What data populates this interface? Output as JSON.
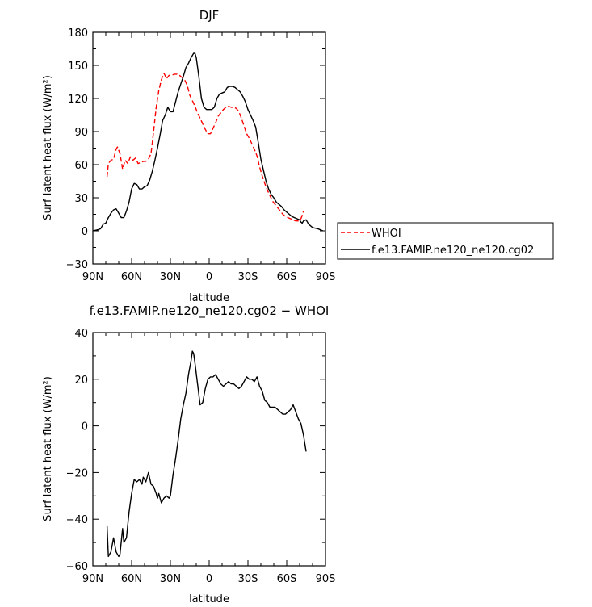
{
  "chart_data": [
    {
      "type": "line",
      "title": "DJF",
      "xlabel": "latitude",
      "ylabel": "Surf latent heat flux (W/m²)",
      "xlim": [
        90,
        -90
      ],
      "ylim": [
        -30,
        180
      ],
      "x_ticks": [
        90,
        60,
        30,
        0,
        -30,
        -60,
        -90
      ],
      "x_tick_labels": [
        "90N",
        "60N",
        "30N",
        "0",
        "30S",
        "60S",
        "90S"
      ],
      "y_ticks": [
        -30,
        0,
        30,
        60,
        90,
        120,
        150,
        180
      ],
      "y_tick_labels": [
        "−30",
        "0",
        "30",
        "60",
        "90",
        "120",
        "150",
        "180"
      ],
      "legend_position": "right, outside plot",
      "series": [
        {
          "name": "WHOI",
          "color": "#ff0000",
          "dash": true,
          "points": [
            [
              79,
              49
            ],
            [
              78,
              61
            ],
            [
              76,
              64
            ],
            [
              74,
              65
            ],
            [
              72,
              74
            ],
            [
              71,
              76
            ],
            [
              69,
              70
            ],
            [
              67,
              56
            ],
            [
              65,
              64
            ],
            [
              63,
              61
            ],
            [
              61,
              67
            ],
            [
              59,
              64
            ],
            [
              57,
              66
            ],
            [
              55,
              61
            ],
            [
              53,
              62
            ],
            [
              51,
              63
            ],
            [
              49,
              63
            ],
            [
              47,
              65
            ],
            [
              45,
              70
            ],
            [
              43,
              90
            ],
            [
              41,
              112
            ],
            [
              39,
              127
            ],
            [
              37,
              137
            ],
            [
              35,
              143
            ],
            [
              33,
              138
            ],
            [
              31,
              141
            ],
            [
              29,
              141
            ],
            [
              27,
              142
            ],
            [
              25,
              142
            ],
            [
              23,
              141
            ],
            [
              21,
              139
            ],
            [
              19,
              137
            ],
            [
              17,
              132
            ],
            [
              15,
              123
            ],
            [
              13,
              118
            ],
            [
              11,
              113
            ],
            [
              9,
              107
            ],
            [
              7,
              102
            ],
            [
              5,
              97
            ],
            [
              3,
              92
            ],
            [
              1,
              88
            ],
            [
              -1,
              88
            ],
            [
              -3,
              93
            ],
            [
              -5,
              98
            ],
            [
              -7,
              104
            ],
            [
              -9,
              107
            ],
            [
              -11,
              110
            ],
            [
              -13,
              112
            ],
            [
              -15,
              113
            ],
            [
              -17,
              112
            ],
            [
              -19,
              112
            ],
            [
              -21,
              111
            ],
            [
              -23,
              108
            ],
            [
              -25,
              102
            ],
            [
              -27,
              95
            ],
            [
              -29,
              88
            ],
            [
              -31,
              84
            ],
            [
              -33,
              79
            ],
            [
              -35,
              74
            ],
            [
              -37,
              68
            ],
            [
              -39,
              58
            ],
            [
              -41,
              50
            ],
            [
              -43,
              43
            ],
            [
              -45,
              37
            ],
            [
              -47,
              32
            ],
            [
              -49,
              27
            ],
            [
              -51,
              24
            ],
            [
              -53,
              21
            ],
            [
              -55,
              18
            ],
            [
              -57,
              15
            ],
            [
              -59,
              13
            ],
            [
              -61,
              12
            ],
            [
              -63,
              11
            ],
            [
              -65,
              10
            ],
            [
              -67,
              9
            ],
            [
              -69,
              9
            ],
            [
              -71,
              11
            ],
            [
              -72,
              14
            ],
            [
              -73,
              18
            ]
          ]
        },
        {
          "name": "f.e13.FAMIP.ne120_ne120.cg02",
          "color": "#000000",
          "dash": false,
          "points": [
            [
              90,
              0
            ],
            [
              86,
              1
            ],
            [
              84,
              2
            ],
            [
              82,
              6
            ],
            [
              80,
              7
            ],
            [
              78,
              12
            ],
            [
              76,
              16
            ],
            [
              74,
              19
            ],
            [
              72,
              20
            ],
            [
              70,
              16
            ],
            [
              68,
              12
            ],
            [
              66,
              12
            ],
            [
              64,
              18
            ],
            [
              62,
              26
            ],
            [
              60,
              38
            ],
            [
              58,
              43
            ],
            [
              56,
              42
            ],
            [
              54,
              38
            ],
            [
              52,
              38
            ],
            [
              50,
              40
            ],
            [
              48,
              41
            ],
            [
              46,
              46
            ],
            [
              44,
              54
            ],
            [
              42,
              64
            ],
            [
              40,
              75
            ],
            [
              38,
              87
            ],
            [
              36,
              100
            ],
            [
              34,
              105
            ],
            [
              32,
              112
            ],
            [
              30,
              108
            ],
            [
              28,
              108
            ],
            [
              26,
              117
            ],
            [
              24,
              126
            ],
            [
              22,
              133
            ],
            [
              20,
              140
            ],
            [
              18,
              148
            ],
            [
              16,
              152
            ],
            [
              14,
              157
            ],
            [
              12,
              161
            ],
            [
              11,
              161
            ],
            [
              10,
              157
            ],
            [
              8,
              140
            ],
            [
              6,
              120
            ],
            [
              4,
              112
            ],
            [
              2,
              110
            ],
            [
              0,
              110
            ],
            [
              -2,
              110
            ],
            [
              -4,
              112
            ],
            [
              -6,
              120
            ],
            [
              -8,
              124
            ],
            [
              -10,
              125
            ],
            [
              -12,
              126
            ],
            [
              -14,
              130
            ],
            [
              -16,
              131
            ],
            [
              -18,
              131
            ],
            [
              -20,
              130
            ],
            [
              -22,
              128
            ],
            [
              -24,
              126
            ],
            [
              -26,
              122
            ],
            [
              -28,
              117
            ],
            [
              -30,
              110
            ],
            [
              -32,
              105
            ],
            [
              -34,
              100
            ],
            [
              -36,
              94
            ],
            [
              -38,
              80
            ],
            [
              -40,
              65
            ],
            [
              -42,
              55
            ],
            [
              -44,
              45
            ],
            [
              -46,
              38
            ],
            [
              -48,
              33
            ],
            [
              -50,
              30
            ],
            [
              -52,
              26
            ],
            [
              -54,
              24
            ],
            [
              -56,
              22
            ],
            [
              -58,
              19
            ],
            [
              -60,
              17
            ],
            [
              -62,
              15
            ],
            [
              -64,
              13
            ],
            [
              -66,
              12
            ],
            [
              -68,
              11
            ],
            [
              -70,
              10
            ],
            [
              -71,
              8
            ],
            [
              -72,
              7
            ],
            [
              -73,
              9
            ],
            [
              -75,
              10
            ],
            [
              -77,
              6
            ],
            [
              -80,
              3
            ],
            [
              -84,
              2
            ],
            [
              -88,
              0
            ]
          ]
        }
      ]
    },
    {
      "type": "line",
      "title": "f.e13.FAMIP.ne120_ne120.cg02 − WHOI",
      "xlabel": "latitude",
      "ylabel": "Surf latent heat flux (W/m²)",
      "xlim": [
        90,
        -90
      ],
      "ylim": [
        -60,
        40
      ],
      "x_ticks": [
        90,
        60,
        30,
        0,
        -30,
        -60,
        -90
      ],
      "x_tick_labels": [
        "90N",
        "60N",
        "30N",
        "0",
        "30S",
        "60S",
        "90S"
      ],
      "y_ticks": [
        -60,
        -40,
        -20,
        0,
        20,
        40
      ],
      "y_tick_labels": [
        "−60",
        "−40",
        "−20",
        "0",
        "20",
        "40"
      ],
      "series": [
        {
          "color": "#000000",
          "dash": false,
          "points": [
            [
              79,
              -43
            ],
            [
              78,
              -56
            ],
            [
              76,
              -54
            ],
            [
              74,
              -48
            ],
            [
              72,
              -54
            ],
            [
              70,
              -56
            ],
            [
              69,
              -55
            ],
            [
              67,
              -44
            ],
            [
              66,
              -50
            ],
            [
              64,
              -48
            ],
            [
              62,
              -37
            ],
            [
              60,
              -29
            ],
            [
              58,
              -23
            ],
            [
              56,
              -24
            ],
            [
              54,
              -23
            ],
            [
              52,
              -25
            ],
            [
              51,
              -22
            ],
            [
              49,
              -24
            ],
            [
              47,
              -20
            ],
            [
              45,
              -25
            ],
            [
              43,
              -26
            ],
            [
              41,
              -29
            ],
            [
              40,
              -31
            ],
            [
              39,
              -29
            ],
            [
              37,
              -33
            ],
            [
              35,
              -31
            ],
            [
              33,
              -30
            ],
            [
              31,
              -31
            ],
            [
              30,
              -30
            ],
            [
              28,
              -21
            ],
            [
              26,
              -14
            ],
            [
              24,
              -6
            ],
            [
              22,
              3
            ],
            [
              20,
              9
            ],
            [
              18,
              14
            ],
            [
              16,
              22
            ],
            [
              14,
              28
            ],
            [
              13,
              32
            ],
            [
              12,
              31
            ],
            [
              11,
              27
            ],
            [
              9,
              18
            ],
            [
              7,
              9
            ],
            [
              5,
              10
            ],
            [
              3,
              16
            ],
            [
              1,
              20
            ],
            [
              -1,
              21
            ],
            [
              -3,
              21
            ],
            [
              -5,
              22
            ],
            [
              -7,
              20
            ],
            [
              -9,
              18
            ],
            [
              -11,
              17
            ],
            [
              -13,
              18
            ],
            [
              -15,
              19
            ],
            [
              -17,
              18
            ],
            [
              -19,
              18
            ],
            [
              -21,
              17
            ],
            [
              -23,
              16
            ],
            [
              -25,
              17
            ],
            [
              -27,
              19
            ],
            [
              -29,
              21
            ],
            [
              -31,
              20
            ],
            [
              -33,
              20
            ],
            [
              -35,
              19
            ],
            [
              -37,
              21
            ],
            [
              -39,
              17
            ],
            [
              -41,
              15
            ],
            [
              -43,
              11
            ],
            [
              -45,
              10
            ],
            [
              -47,
              8
            ],
            [
              -49,
              8
            ],
            [
              -51,
              8
            ],
            [
              -53,
              7
            ],
            [
              -55,
              6
            ],
            [
              -57,
              5
            ],
            [
              -59,
              5
            ],
            [
              -61,
              6
            ],
            [
              -63,
              7
            ],
            [
              -65,
              9
            ],
            [
              -67,
              6
            ],
            [
              -69,
              3
            ],
            [
              -71,
              1
            ],
            [
              -73,
              -4
            ],
            [
              -75,
              -11
            ]
          ]
        }
      ]
    }
  ]
}
